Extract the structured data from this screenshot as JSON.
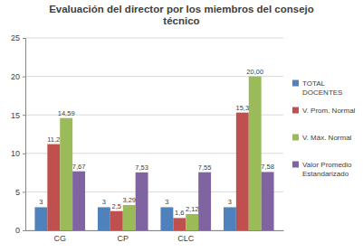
{
  "chart_data": {
    "type": "bar",
    "title": "Evaluación del director por los miembros del consejo técnico",
    "categories": [
      "CG",
      "CP",
      "CLC",
      null
    ],
    "series": [
      {
        "name": "TOTAL DOCENTES",
        "color": "#4f81bd",
        "values": [
          3,
          3,
          3,
          3
        ]
      },
      {
        "name": "V. Prom. Normal",
        "color": "#c0504d",
        "values": [
          11.2,
          2.5,
          1.6,
          15.3
        ],
        "value_labels": [
          "11,2",
          "2,5",
          "1,6",
          "15,3"
        ]
      },
      {
        "name": "V. Máx. Normal",
        "color": "#9bbb59",
        "values": [
          14.59,
          3.29,
          2.12,
          20.0
        ],
        "value_labels": [
          "14,59",
          "3,29",
          "2,12",
          "20,00"
        ]
      },
      {
        "name": "Valor Promedio Estandarizado",
        "color": "#8064a2",
        "values": [
          7.67,
          7.53,
          7.55,
          7.58
        ],
        "value_labels": [
          "7,67",
          "7,53",
          "7,55",
          "7,58"
        ]
      }
    ],
    "ylim": [
      0,
      25
    ],
    "yticks": [
      0,
      5,
      10,
      15,
      20,
      25
    ],
    "grid": true,
    "legend": "right",
    "data_labels": true
  }
}
